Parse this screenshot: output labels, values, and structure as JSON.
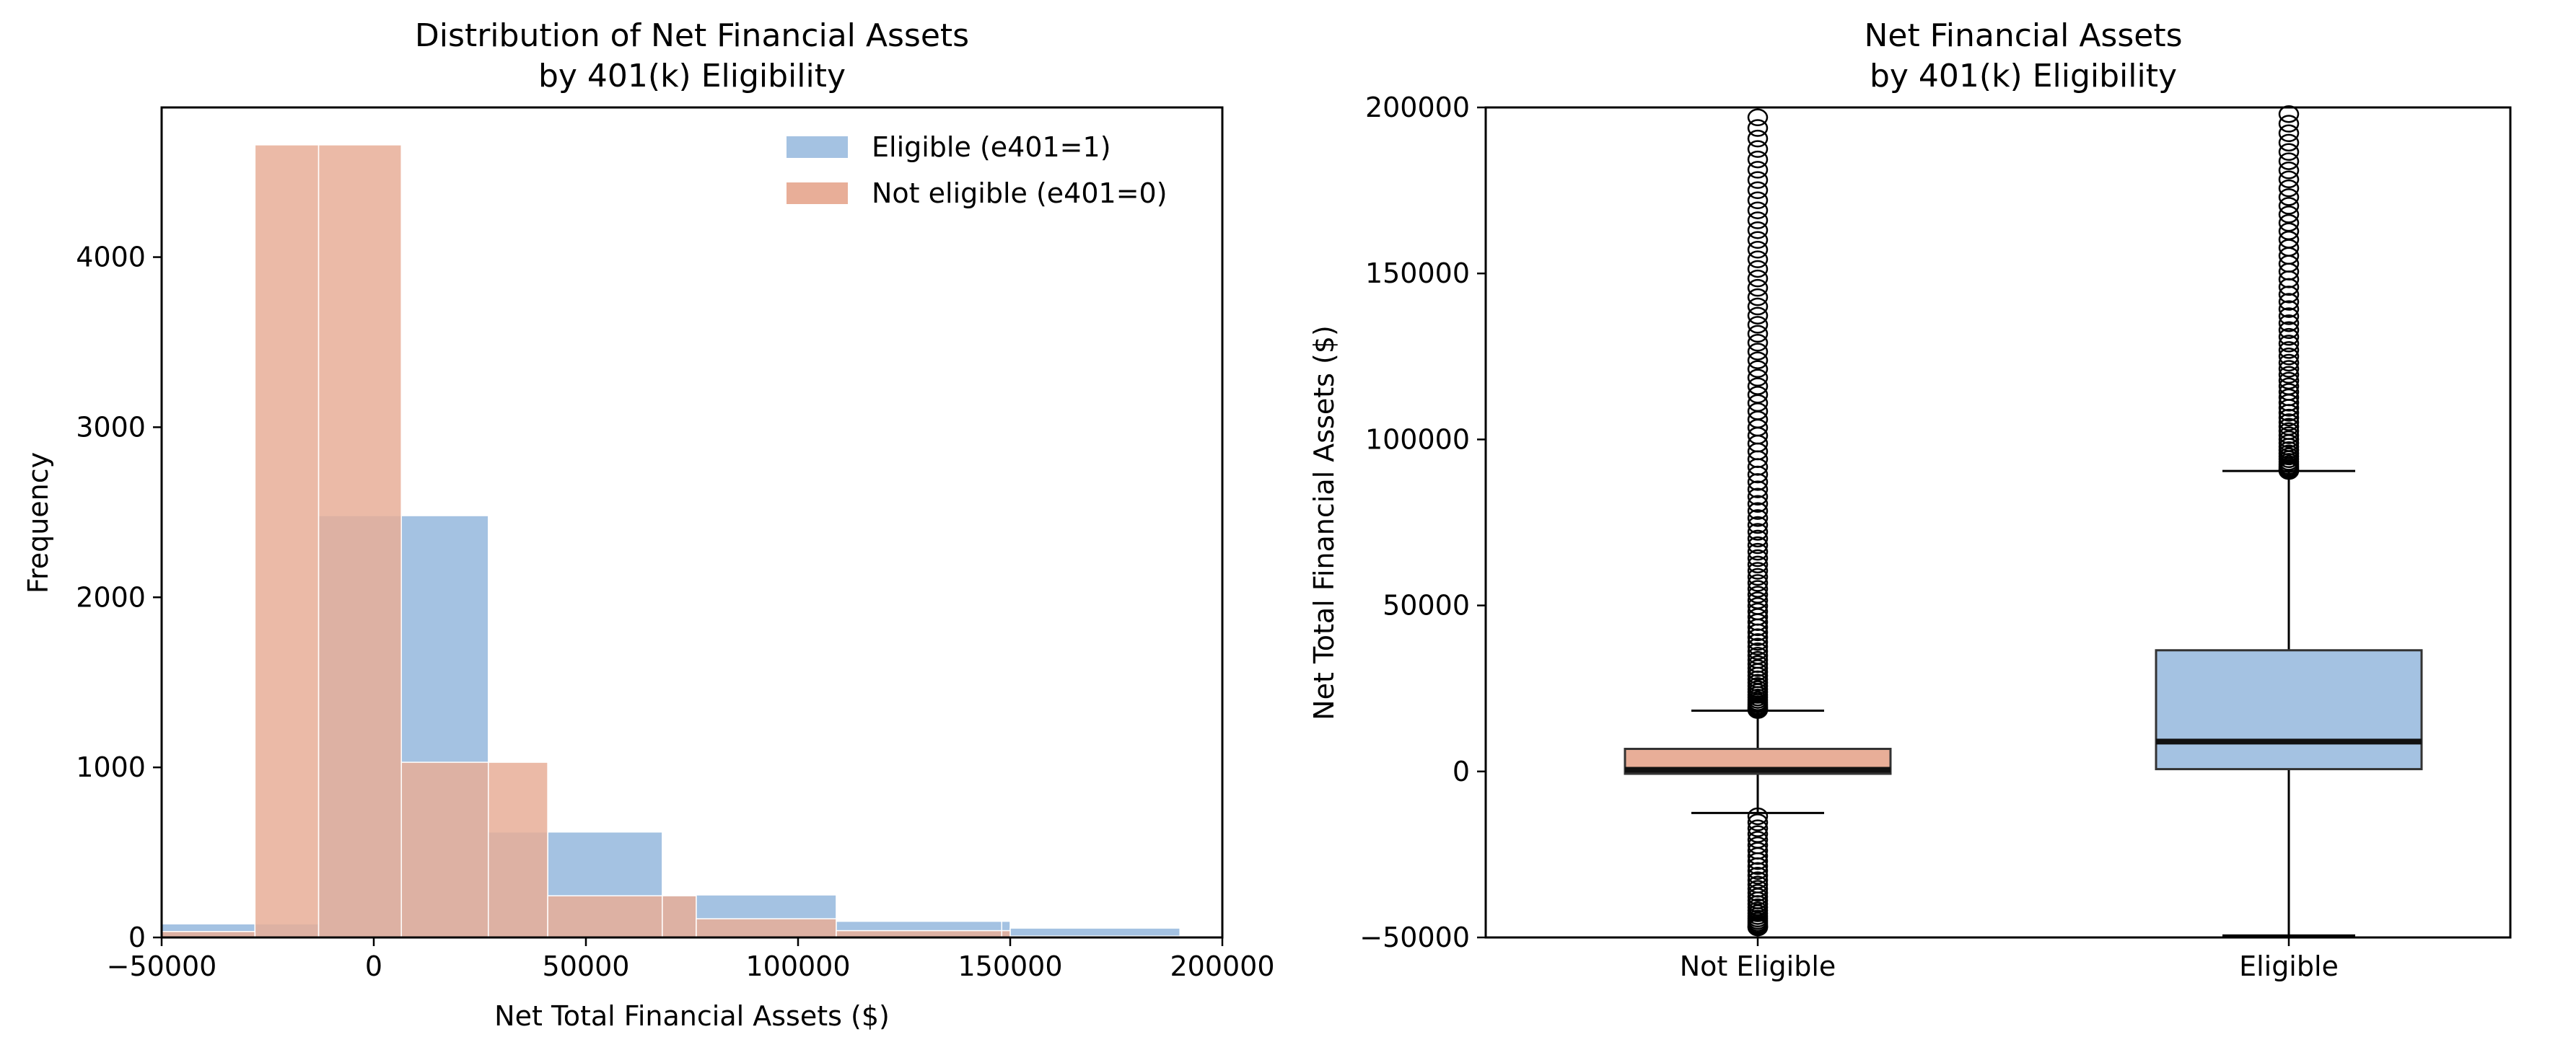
{
  "chart_data": [
    {
      "type": "bar",
      "title": "Distribution of Net Financial Assets",
      "subtitle": "by 401(k) Eligibility",
      "xlabel": "Net Total Financial Assets ($)",
      "ylabel": "Frequency",
      "xlim": [
        -50000,
        200000
      ],
      "ylim": [
        0,
        4880
      ],
      "xticks": [
        "−50000",
        "0",
        "50000",
        "100000",
        "150000",
        "200000"
      ],
      "yticks": [
        "0",
        "1000",
        "2000",
        "3000",
        "4000"
      ],
      "legend_position": "top-right",
      "series": [
        {
          "name": "Eligible (e401=1)",
          "color": "#a4c2e2",
          "bins": [
            {
              "x0": -50000,
              "x1": -28000,
              "value": 80
            },
            {
              "x0": -28000,
              "x1": -13000,
              "value": 80
            },
            {
              "x0": -13000,
              "x1": 6500,
              "value": 2480
            },
            {
              "x0": 6500,
              "x1": 27000,
              "value": 2480
            },
            {
              "x0": 27000,
              "x1": 41000,
              "value": 620
            },
            {
              "x0": 41000,
              "x1": 68000,
              "value": 620
            },
            {
              "x0": 68000,
              "x1": 76000,
              "value": 250
            },
            {
              "x0": 76000,
              "x1": 109000,
              "value": 250
            },
            {
              "x0": 109000,
              "x1": 148000,
              "value": 95
            },
            {
              "x0": 148000,
              "x1": 150000,
              "value": 95
            },
            {
              "x0": 150000,
              "x1": 190000,
              "value": 55
            }
          ]
        },
        {
          "name": "Not eligible (e401=0)",
          "color": "#e8ae98",
          "bins": [
            {
              "x0": -50000,
              "x1": -28000,
              "value": 35
            },
            {
              "x0": -28000,
              "x1": -13000,
              "value": 4660
            },
            {
              "x0": -13000,
              "x1": 6500,
              "value": 4660
            },
            {
              "x0": 6500,
              "x1": 27000,
              "value": 1030
            },
            {
              "x0": 27000,
              "x1": 41000,
              "value": 1030
            },
            {
              "x0": 41000,
              "x1": 68000,
              "value": 245
            },
            {
              "x0": 68000,
              "x1": 76000,
              "value": 245
            },
            {
              "x0": 76000,
              "x1": 109000,
              "value": 110
            },
            {
              "x0": 109000,
              "x1": 148000,
              "value": 40
            },
            {
              "x0": 148000,
              "x1": 150000,
              "value": 40
            },
            {
              "x0": 150000,
              "x1": 190000,
              "value": 8
            },
            {
              "x0": 190000,
              "x1": 200000,
              "value": 8
            }
          ]
        }
      ]
    },
    {
      "type": "box",
      "title": "Net Financial Assets",
      "subtitle": "by 401(k) Eligibility",
      "xlabel": "",
      "ylabel": "Net Total Financial Assets ($)",
      "ylim": [
        -50000,
        200000
      ],
      "yticks": [
        "−50000",
        "0",
        "50000",
        "100000",
        "150000",
        "200000"
      ],
      "categories": [
        "Not Eligible",
        "Eligible"
      ],
      "series": [
        {
          "category": "Not Eligible",
          "color": "#e8ae98",
          "whisker_low": -12500,
          "q1": -700,
          "median": 500,
          "q3": 6800,
          "whisker_high": 18300,
          "outliers_low": {
            "from": -47000,
            "to": -13500,
            "count": 30
          },
          "outliers_high": {
            "from": 18500,
            "to": 197000,
            "count": 90
          }
        },
        {
          "category": "Eligible",
          "color": "#a4c2e2",
          "whisker_low": -49500,
          "q1": 700,
          "median": 9000,
          "q3": 36500,
          "whisker_high": 90500,
          "outliers_low": {
            "from": 0,
            "to": 0,
            "count": 0
          },
          "outliers_high": {
            "from": 90500,
            "to": 198000,
            "count": 60
          }
        }
      ]
    }
  ]
}
